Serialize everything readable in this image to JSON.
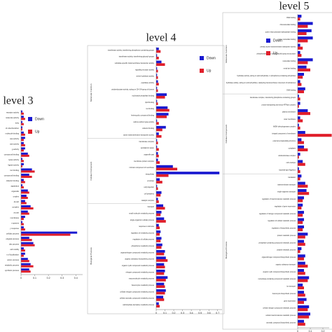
{
  "chart_data": [
    {
      "type": "bar",
      "orientation": "horizontal",
      "title": "level 3",
      "series": [
        {
          "name": "Down",
          "color": "#1a1ad0"
        },
        {
          "name": "Up",
          "color": "#e01e2a"
        }
      ],
      "xlim": [
        0,
        0.45
      ],
      "xticks": [
        0,
        0.1,
        0.2,
        0.3,
        0.4
      ],
      "groups": [
        {
          "categories": [
            "receptor activity",
            "molecule activity",
            "tivity",
            "of mitochondrion",
            "molecule binding",
            "ase activity",
            "ase activity",
            "g activity",
            "compound binding",
            "lyase activity",
            "ligase activity",
            "ion binding",
            "compound binding",
            "cofactor binding",
            "apparatus",
            "organelle",
            "omplex",
            "al part",
            "complex",
            "ar part",
            "membrane",
            "n species",
            "y response",
            "cellular process",
            "ological process",
            "ular process",
            "cell motility",
            "n of localization",
            "anism process",
            "netabolic process",
            "synthetic process"
          ],
          "values": [
            [
              0.01,
              0.02,
              0.01,
              0.01,
              0.02,
              0.03,
              0.02,
              0.03,
              0.05,
              0.01,
              0.02,
              0.08,
              0.06,
              0.02,
              0.01,
              0.05,
              0.04,
              0.03,
              0.07,
              0.05,
              0.03,
              0.01,
              0.02,
              0.41,
              0.06,
              0.09,
              0.02,
              0.03,
              0.05,
              0.07,
              0.06
            ],
            [
              0.02,
              0.03,
              0.02,
              0.01,
              0.03,
              0.02,
              0.03,
              0.02,
              0.06,
              0.02,
              0.01,
              0.1,
              0.08,
              0.03,
              0.02,
              0.06,
              0.05,
              0.04,
              0.09,
              0.06,
              0.02,
              0.02,
              0.03,
              0.36,
              0.08,
              0.1,
              0.03,
              0.02,
              0.06,
              0.09,
              0.07
            ]
          ]
        }
      ]
    },
    {
      "type": "bar",
      "orientation": "horizontal",
      "title": "level 4",
      "series": [
        {
          "name": "Down",
          "color": "#1a1ad0"
        },
        {
          "name": "Up",
          "color": "#e01e2a"
        }
      ],
      "xlim": [
        0,
        0.75
      ],
      "xticks": [
        0,
        0.1,
        0.2,
        0.3,
        0.4,
        0.5,
        0.6,
        0.7
      ],
      "groups": [
        {
          "name": "Molecular Function",
          "categories": [
            "transferase activity, transferring phosphorus-containing groups",
            "transferase activity, transferring glycosyl groups",
            "substrate-specific transmembrane transporter activity",
            "signaling receptor activity",
            "serine hydrolase activity",
            "peptidase activity",
            "oxidoreductase activity, acting on CH-OH group of donors",
            "nucleoside phosphate binding",
            "lipid binding",
            "ion binding",
            "heterocyclic compound binding",
            "carbon-carbon lyase activity",
            "cofactor binding",
            "active transmembrane transporter activity"
          ],
          "values": [
            [
              0.03,
              0.01,
              0.06,
              0.01,
              0.01,
              0.02,
              0.01,
              0.12,
              0.01,
              0.13,
              0.14,
              0.01,
              0.11,
              0.03
            ],
            [
              0.05,
              0.03,
              0.1,
              0.02,
              0.02,
              0.03,
              0.02,
              0.1,
              0.02,
              0.15,
              0.12,
              0.03,
              0.07,
              0.06
            ]
          ]
        },
        {
          "name": "Cellular Component",
          "categories": [
            "transferase complex",
            "periplasmic space",
            "organelle part",
            "membrane protein complex",
            "intrinsic component of membrane",
            "intracellular",
            "envelope",
            "cell projection",
            "cell periphery",
            "catalytic complex"
          ],
          "values": [
            [
              0.01,
              0.01,
              0.02,
              0.02,
              0.19,
              0.72,
              0.04,
              0.01,
              0.06,
              0.02
            ],
            [
              0.02,
              0.03,
              0.03,
              0.04,
              0.24,
              0.14,
              0.07,
              0.02,
              0.05,
              0.03
            ]
          ]
        },
        {
          "name": "Biological Process",
          "categories": [
            "transport",
            "small molecule metabolic process",
            "single-organism cellular process",
            "response to stimulus",
            "regulation of metabolic process",
            "regulation of cellular process",
            "phosphorus metabolic process",
            "organonitrogen compound metabolic process",
            "organic substance biosynthetic process",
            "organic cyclic compound metabolic process",
            "nitrogen compound metabolic process",
            "macromolecule metabolic process",
            "heterocycle metabolic process",
            "cellular nitrogen compound metabolic process",
            "cellular aromatic compound metabolic process",
            "carbohydrate derivative metabolic process"
          ],
          "values": [
            [
              0.08,
              0.06,
              0.09,
              0.03,
              0.05,
              0.06,
              0.07,
              0.1,
              0.11,
              0.09,
              0.1,
              0.13,
              0.09,
              0.11,
              0.08,
              0.03
            ],
            [
              0.1,
              0.05,
              0.11,
              0.04,
              0.04,
              0.05,
              0.06,
              0.09,
              0.13,
              0.1,
              0.09,
              0.11,
              0.1,
              0.1,
              0.09,
              0.04
            ]
          ]
        }
      ]
    },
    {
      "type": "bar",
      "orientation": "horizontal",
      "title": "level 5",
      "series": [
        {
          "name": "Down",
          "color": "#1a1ad0"
        },
        {
          "name": "Up",
          "color": "#e01e2a"
        }
      ],
      "xlim": [
        0,
        0.25
      ],
      "xticks": [
        0,
        0.1,
        0.2
      ],
      "groups": [
        {
          "name": "Molecular Function",
          "categories": [
            "RNA binding",
            "ribonucleotide binding",
            "purine ribonucleoside triphosphate binding",
            "purine nucleotide binding",
            "primary active transmembrane transporter activity",
            "phosphotransferase activity, alcohol group as acceptor",
            "nucleotide binding",
            "metal ion binding",
            "hydrolase activity, acting on acid anhydrides, in phosphorus-containing anhydrides",
            "hydrolase activity, acting on acid anhydrides, catalyzing transmembrane movement of substances",
            "DNA binding"
          ],
          "values": [
            [
              0.03,
              0.12,
              0.11,
              0.12,
              0.02,
              0.02,
              0.12,
              0.07,
              0.05,
              0.02,
              0.06
            ],
            [
              0.02,
              0.08,
              0.07,
              0.08,
              0.04,
              0.03,
              0.08,
              0.1,
              0.04,
              0.03,
              0.05
            ]
          ]
        },
        {
          "name": "Cellular Component",
          "categories": [
            "transferase complex, transferring phosphorus-containing groups",
            "proton-transporting two-sector ATPase complex",
            "plasma membrane",
            "outer membrane",
            "NADH dehydrogenase complex",
            "integral component of membrane",
            "external encapsulating structure",
            "cytoplasm",
            "oxidoreductase complex",
            "cell envelope",
            "bacterial-type flagellum"
          ],
          "values": [
            [
              0.01,
              0.02,
              0.08,
              0.02,
              0.01,
              0.06,
              0.03,
              0.05,
              0.02,
              0.04,
              0.01
            ],
            [
              0.02,
              0.01,
              0.1,
              0.04,
              0.02,
              0.27,
              0.05,
              0.08,
              0.01,
              0.06,
              0.02
            ]
          ]
        },
        {
          "name": "Biological Process",
          "categories": [
            "translation",
            "transmembrane transport",
            "single-organism transport",
            "regulation of macromolecule metabolic process",
            "regulation of gene expression",
            "regulation of nitrogen compound metabolic process",
            "regulation of cellular metabolic process",
            "regulation of biosynthetic process",
            "protein metabolic process",
            "phosphate-containing compound metabolic process",
            "peptide metabolic process",
            "organonitrogen compound biosynthetic process",
            "organic substance transport",
            "organic cyclic compound biosynthetic process",
            "nucleobase-containing compound metabolic process",
            "ion transport",
            "heterocycle biosynthetic process",
            "gene expression",
            "cellular nitrogen compound metabolic process",
            "cellular macromolecule metabolic process",
            "aromatic compound biosynthetic process"
          ],
          "values": [
            [
              0.03,
              0.06,
              0.07,
              0.05,
              0.04,
              0.05,
              0.05,
              0.05,
              0.08,
              0.05,
              0.03,
              0.06,
              0.06,
              0.05,
              0.09,
              0.04,
              0.05,
              0.07,
              0.09,
              0.1,
              0.05
            ],
            [
              0.02,
              0.08,
              0.09,
              0.04,
              0.03,
              0.04,
              0.04,
              0.04,
              0.06,
              0.06,
              0.02,
              0.05,
              0.08,
              0.06,
              0.08,
              0.05,
              0.06,
              0.05,
              0.08,
              0.09,
              0.06
            ]
          ]
        }
      ]
    }
  ]
}
